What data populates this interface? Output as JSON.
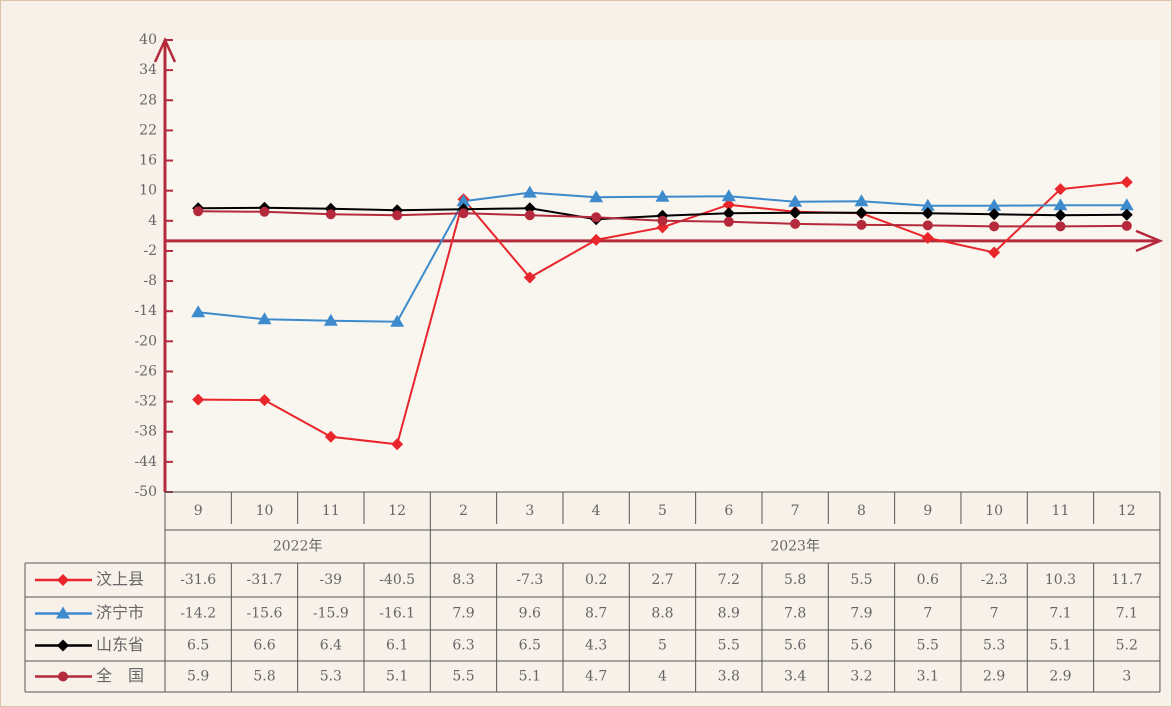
{
  "chart_data": {
    "type": "line",
    "categories": [
      "9",
      "10",
      "11",
      "12",
      "2",
      "3",
      "4",
      "5",
      "6",
      "7",
      "8",
      "9",
      "10",
      "11",
      "12"
    ],
    "x_groups": [
      "2022年",
      "2023年"
    ],
    "ylim": [
      -50,
      40
    ],
    "yticks": [
      40,
      34,
      28,
      22,
      16,
      10,
      4,
      -2,
      -8,
      -14,
      -20,
      -26,
      -32,
      -38,
      -44,
      -50
    ],
    "series": [
      {
        "name": "汶上县",
        "color": "#e8262b",
        "marker": "diamond",
        "values": [
          -31.6,
          -31.7,
          -39,
          -40.5,
          8.3,
          -7.3,
          0.2,
          2.7,
          7.2,
          5.8,
          5.5,
          0.6,
          -2.3,
          10.3,
          11.7
        ]
      },
      {
        "name": "济宁市",
        "color": "#3d8bcd",
        "marker": "triangle",
        "values": [
          -14.2,
          -15.6,
          -15.9,
          -16.1,
          7.9,
          9.6,
          8.7,
          8.8,
          8.9,
          7.8,
          7.9,
          7,
          7,
          7.1,
          7.1
        ]
      },
      {
        "name": "山东省",
        "color": "#000000",
        "marker": "diamond",
        "values": [
          6.5,
          6.6,
          6.4,
          6.1,
          6.3,
          6.5,
          4.3,
          5,
          5.5,
          5.6,
          5.6,
          5.5,
          5.3,
          5.1,
          5.2
        ]
      },
      {
        "name": "全　国",
        "color": "#b42a3c",
        "marker": "circle",
        "values": [
          5.9,
          5.8,
          5.3,
          5.1,
          5.5,
          5.1,
          4.7,
          4,
          3.8,
          3.4,
          3.2,
          3.1,
          2.9,
          2.9,
          3
        ]
      }
    ]
  }
}
